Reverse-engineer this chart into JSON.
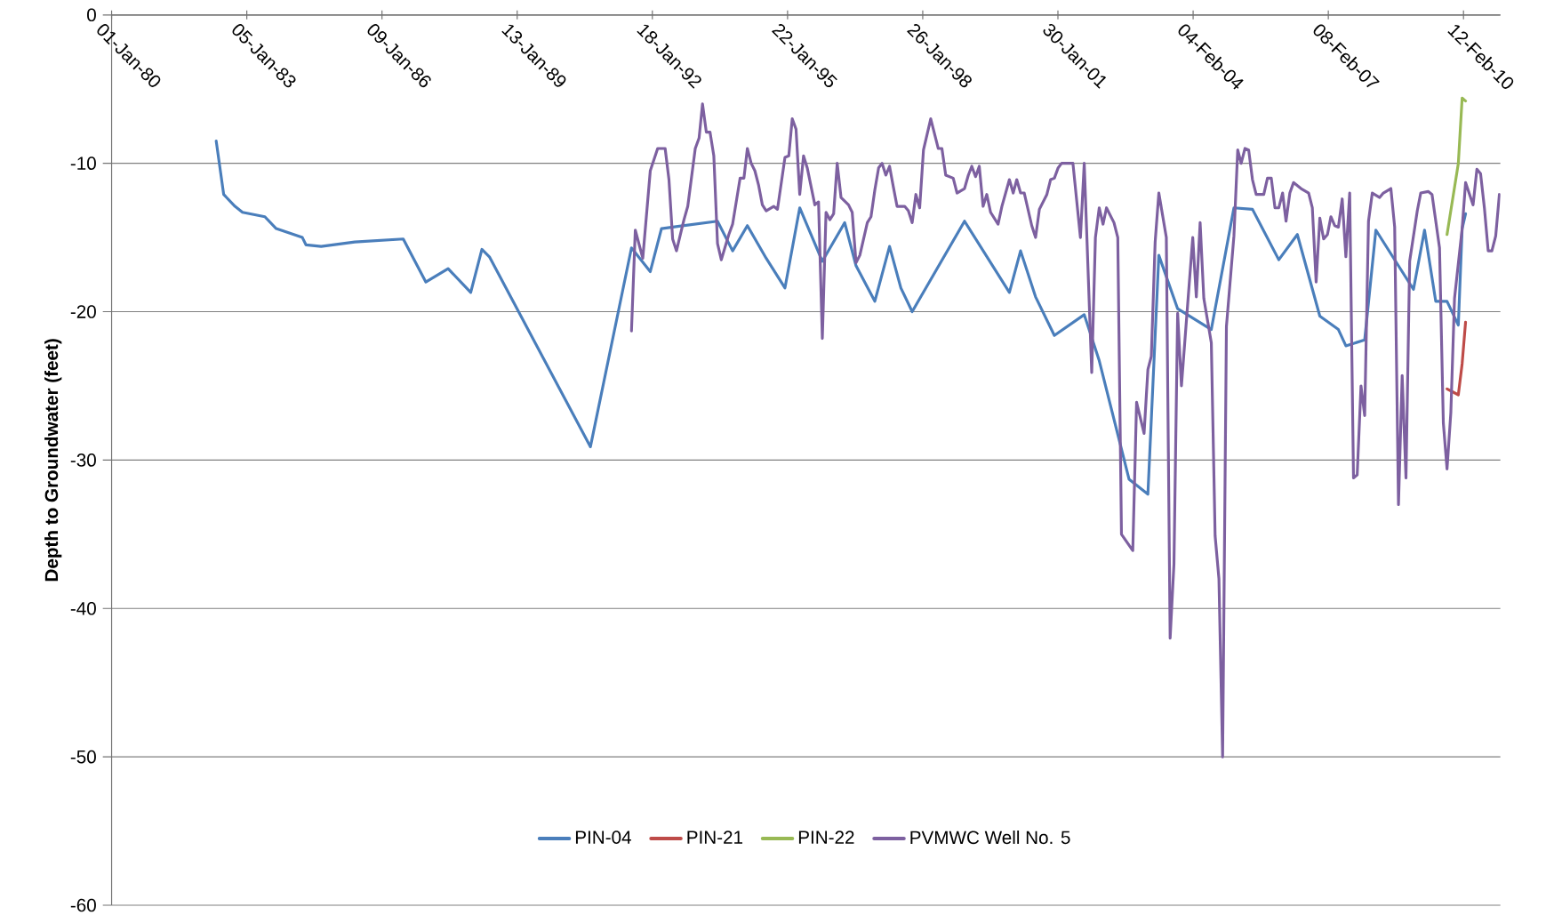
{
  "chart_data": {
    "type": "line",
    "ylabel": "Depth to Groundwater (feet)",
    "xlim": [
      "1980-01-01",
      "2010-12-09"
    ],
    "xticks": [
      {
        "value": "1980-01-01",
        "label": "01-Jan-80"
      },
      {
        "value": "1983-01-05",
        "label": "05-Jan-83"
      },
      {
        "value": "1986-01-09",
        "label": "09-Jan-86"
      },
      {
        "value": "1989-01-13",
        "label": "13-Jan-89"
      },
      {
        "value": "1992-01-18",
        "label": "18-Jan-92"
      },
      {
        "value": "1995-01-22",
        "label": "22-Jan-95"
      },
      {
        "value": "1998-01-26",
        "label": "26-Jan-98"
      },
      {
        "value": "2001-01-30",
        "label": "30-Jan-01"
      },
      {
        "value": "2004-02-04",
        "label": "04-Feb-04"
      },
      {
        "value": "2007-02-08",
        "label": "08-Feb-07"
      },
      {
        "value": "2010-02-12",
        "label": "12-Feb-10"
      }
    ],
    "ylim": [
      -60,
      0
    ],
    "yticks": [
      -60,
      -50,
      -40,
      -30,
      -20,
      -10,
      0
    ],
    "grid": "y",
    "legend": "bottom",
    "series": [
      {
        "name": "PIN-04",
        "color": "#4a7ebb",
        "x": [
          "1982-05",
          "1982-07",
          "1982-10",
          "1982-12",
          "1983-06",
          "1983-09",
          "1984-04",
          "1984-05",
          "1984-09",
          "1985-06",
          "1986-07",
          "1987-01",
          "1987-07",
          "1988-01",
          "1988-04",
          "1988-06",
          "1990-09",
          "1991-08",
          "1992-01",
          "1992-04",
          "1993-07",
          "1993-11",
          "1994-03",
          "1994-08",
          "1995-01",
          "1995-05",
          "1995-11",
          "1996-05",
          "1996-08",
          "1997-01",
          "1997-05",
          "1997-08",
          "1997-11",
          "1999-01",
          "2000-01",
          "2000-04",
          "2000-08",
          "2001-01",
          "2001-09",
          "2002-01",
          "2002-09",
          "2003-02",
          "2003-05",
          "2003-10",
          "2004-07",
          "2005-01",
          "2005-06",
          "2006-01",
          "2006-06",
          "2006-12",
          "2007-05",
          "2007-07",
          "2007-12",
          "2008-03",
          "2009-01",
          "2009-04",
          "2009-07",
          "2009-10",
          "2010-01",
          "2010-02",
          "2010-03"
        ],
        "values": [
          -8.5,
          -12.1,
          -12.9,
          -13.3,
          -13.6,
          -14.4,
          -15.0,
          -15.5,
          -15.6,
          -15.3,
          -15.1,
          -18.0,
          -17.1,
          -18.7,
          -15.8,
          -16.3,
          -29.1,
          -15.7,
          -17.3,
          -14.4,
          -13.9,
          -15.9,
          -14.2,
          -16.4,
          -18.4,
          -13.0,
          -16.6,
          -14.0,
          -16.9,
          -19.3,
          -15.6,
          -18.4,
          -20.0,
          -13.9,
          -18.7,
          -15.9,
          -19.0,
          -21.6,
          -20.2,
          -23.3,
          -31.3,
          -32.3,
          -16.2,
          -19.8,
          -21.2,
          -13.0,
          -13.1,
          -16.5,
          -14.8,
          -20.3,
          -21.2,
          -22.3,
          -21.9,
          -14.5,
          -18.5,
          -14.5,
          -19.3,
          -19.3,
          -20.9,
          -14.4,
          -13.4
        ]
      },
      {
        "name": "PIN-21",
        "color": "#be4b48",
        "x": [
          "2009-10",
          "2010-01",
          "2010-02",
          "2010-03"
        ],
        "values": [
          -25.2,
          -25.6,
          -23.5,
          -20.7
        ]
      },
      {
        "name": "PIN-22",
        "color": "#98b954",
        "x": [
          "2009-10",
          "2010-01",
          "2010-02",
          "2010-03"
        ],
        "values": [
          -14.8,
          -10.0,
          -5.6,
          -5.8
        ]
      },
      {
        "name": "PVMWC Well No. 5",
        "color": "#7d60a0",
        "x": [
          "1991-08",
          "1991-09",
          "1991-11",
          "1992-01",
          "1992-03",
          "1992-05",
          "1992-06",
          "1992-07",
          "1992-08",
          "1992-10",
          "1992-11",
          "1993-01",
          "1993-02",
          "1993-03",
          "1993-04",
          "1993-05",
          "1993-06",
          "1993-07",
          "1993-08",
          "1993-10",
          "1993-11",
          "1994-01",
          "1994-02",
          "1994-03",
          "1994-04",
          "1994-05",
          "1994-06",
          "1994-07",
          "1994-08",
          "1994-10",
          "1994-11",
          "1995-01",
          "1995-02",
          "1995-03",
          "1995-04",
          "1995-05",
          "1995-06",
          "1995-07",
          "1995-09",
          "1995-10",
          "1995-11",
          "1995-12",
          "1996-01",
          "1996-02",
          "1996-03",
          "1996-04",
          "1996-06",
          "1996-07",
          "1996-08",
          "1996-09",
          "1996-11",
          "1996-12",
          "1997-01",
          "1997-02",
          "1997-03",
          "1997-04",
          "1997-05",
          "1997-06",
          "1997-07",
          "1997-09",
          "1997-10",
          "1997-11",
          "1997-12",
          "1998-01",
          "1998-02",
          "1998-04",
          "1998-06",
          "1998-07",
          "1998-08",
          "1998-10",
          "1998-11",
          "1999-01",
          "1999-02",
          "1999-03",
          "1999-04",
          "1999-05",
          "1999-06",
          "1999-07",
          "1999-08",
          "1999-10",
          "1999-11",
          "2000-01",
          "2000-02",
          "2000-03",
          "2000-04",
          "2000-05",
          "2000-07",
          "2000-08",
          "2000-09",
          "2000-11",
          "2000-12",
          "2001-01",
          "2001-02",
          "2001-03",
          "2001-05",
          "2001-06",
          "2001-08",
          "2001-09",
          "2001-11",
          "2001-12",
          "2002-01",
          "2002-02",
          "2002-03",
          "2002-05",
          "2002-06",
          "2002-07",
          "2002-10",
          "2002-11",
          "2003-01",
          "2003-02",
          "2003-03",
          "2003-04",
          "2003-05",
          "2003-07",
          "2003-08",
          "2003-09",
          "2003-10",
          "2003-11",
          "2004-02",
          "2004-03",
          "2004-04",
          "2004-05",
          "2004-07",
          "2004-08",
          "2004-09",
          "2004-10",
          "2004-11",
          "2005-01",
          "2005-02",
          "2005-03",
          "2005-04",
          "2005-05",
          "2005-06",
          "2005-07",
          "2005-09",
          "2005-10",
          "2005-11",
          "2005-12",
          "2006-01",
          "2006-02",
          "2006-03",
          "2006-04",
          "2006-05",
          "2006-07",
          "2006-09",
          "2006-10",
          "2006-11",
          "2006-12",
          "2007-01",
          "2007-02",
          "2007-03",
          "2007-04",
          "2007-05",
          "2007-06",
          "2007-07",
          "2007-08",
          "2007-09",
          "2007-10",
          "2007-11",
          "2007-12",
          "2008-01",
          "2008-02",
          "2008-04",
          "2008-05",
          "2008-07",
          "2008-08",
          "2008-09",
          "2008-10",
          "2008-11",
          "2008-12",
          "2009-02",
          "2009-03",
          "2009-05",
          "2009-06",
          "2009-08",
          "2009-09",
          "2009-10",
          "2009-11",
          "2009-12",
          "2010-02",
          "2010-03",
          "2010-05",
          "2010-06",
          "2010-07",
          "2010-08",
          "2010-09",
          "2010-10",
          "2010-11",
          "2010-12"
        ],
        "values": [
          -21.3,
          -14.5,
          -16.4,
          -10.5,
          -9.0,
          -9.0,
          -11.1,
          -15.1,
          -15.9,
          -13.8,
          -12.9,
          -9.0,
          -8.3,
          -6.0,
          -7.9,
          -7.9,
          -9.5,
          -15.4,
          -16.5,
          -14.8,
          -14.1,
          -11.0,
          -11.0,
          -9.0,
          -10.0,
          -10.5,
          -11.5,
          -12.8,
          -13.2,
          -12.9,
          -13.1,
          -9.6,
          -9.5,
          -7.0,
          -7.7,
          -12.1,
          -9.5,
          -10.3,
          -12.8,
          -12.6,
          -21.8,
          -13.3,
          -13.8,
          -13.4,
          -10.0,
          -12.3,
          -12.8,
          -13.3,
          -16.7,
          -16.2,
          -14.0,
          -13.6,
          -11.8,
          -10.3,
          -10.0,
          -10.8,
          -10.2,
          -11.6,
          -12.9,
          -12.9,
          -13.2,
          -14.0,
          -12.1,
          -13.0,
          -9.1,
          -7.0,
          -9.0,
          -9.0,
          -10.8,
          -11.0,
          -12.0,
          -11.7,
          -10.8,
          -10.2,
          -10.9,
          -10.2,
          -12.9,
          -12.1,
          -13.3,
          -14.1,
          -12.9,
          -11.1,
          -12.0,
          -11.1,
          -12.0,
          -12.0,
          -14.2,
          -15.0,
          -13.1,
          -12.1,
          -11.1,
          -11.0,
          -10.3,
          -10.0,
          -10.0,
          -10.0,
          -15.0,
          -10.0,
          -24.1,
          -15.0,
          -13.0,
          -14.1,
          -13.0,
          -14.0,
          -15.0,
          -35.0,
          -36.1,
          -26.1,
          -28.2,
          -23.9,
          -23.0,
          -15.3,
          -12.0,
          -15.0,
          -42.0,
          -37.0,
          -20.1,
          -25.0,
          -15.0,
          -19.0,
          -14.0,
          -19.1,
          -22.1,
          -35.1,
          -38.0,
          -50.0,
          -21.0,
          -14.9,
          -9.1,
          -10.0,
          -9.0,
          -9.1,
          -11.1,
          -12.1,
          -12.1,
          -11.0,
          -11.0,
          -13.0,
          -13.0,
          -12.0,
          -13.9,
          -12.0,
          -11.3,
          -11.7,
          -12.0,
          -13.0,
          -18.0,
          -13.7,
          -15.1,
          -14.8,
          -13.6,
          -14.2,
          -14.3,
          -12.4,
          -16.3,
          -12.0,
          -31.2,
          -31.0,
          -25.0,
          -27.0,
          -13.9,
          -12.0,
          -12.3,
          -12.0,
          -11.7,
          -14.3,
          -33.0,
          -24.3,
          -31.2,
          -16.6,
          -13.2,
          -12.0,
          -11.9,
          -12.1,
          -15.7,
          -27.5,
          -30.6,
          -26.8,
          -19.1,
          -14.4,
          -11.3,
          -12.8,
          -10.4,
          -10.7,
          -13.0,
          -15.9,
          -15.9,
          -14.9,
          -12.1
        ]
      }
    ]
  }
}
